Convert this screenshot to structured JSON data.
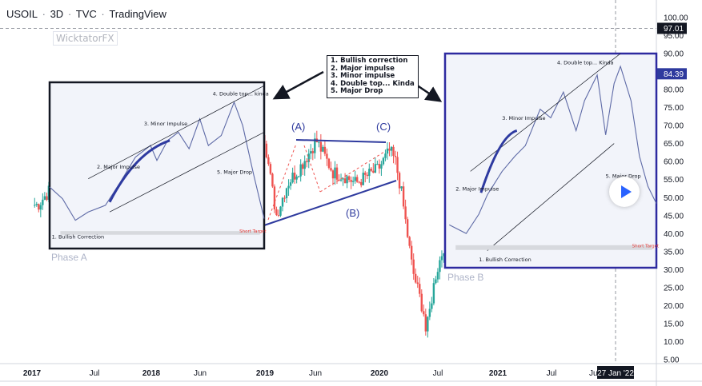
{
  "header": {
    "symbol": "USOIL",
    "timeframe": "3D",
    "exchange": "TVC",
    "brand": "TradingView"
  },
  "watermark": "WicktatorFX",
  "legend": {
    "items": [
      "1. Bullish correction",
      "2. Major impulse",
      "3. Minor impulse",
      "4. Double top... Kinda",
      "5. Major Drop"
    ]
  },
  "labels": {
    "phase_a": "Phase A",
    "phase_b": "Phase B",
    "wave_a": "(A)",
    "wave_b": "(B)",
    "wave_c": "(C)"
  },
  "inset_a": {
    "labels": [
      "1. Bullish Correction",
      "2. Major Impulse",
      "3. Minor Impulse",
      "4. Double top... kinda",
      "5. Major Drop"
    ],
    "target": "Short Target"
  },
  "inset_b": {
    "labels": [
      "1. Bullish Correction",
      "2. Major Impulse",
      "3. Minor Impulse",
      "4. Double top... Kinda",
      "5. Major Drop"
    ],
    "target": "Short Target"
  },
  "colors": {
    "up": "#26a69a",
    "down": "#ef5350",
    "up_inset": "#1c2d5c",
    "down_inset": "#ef9bb5",
    "accent": "#2e3a9e",
    "last_price": "#2e3a9e"
  },
  "chart_data": {
    "type": "candlestick",
    "title": "USOIL · 3D · TVC",
    "y_axis": {
      "min": 5,
      "max": 100,
      "ticks": [
        100,
        95,
        90,
        85,
        80,
        75,
        70,
        65,
        60,
        55,
        50,
        45,
        40,
        35,
        30,
        25,
        20,
        15,
        10,
        5
      ]
    },
    "x_axis": {
      "ticks": [
        "2017",
        "Jul",
        "2018",
        "Jun",
        "2019",
        "Jun",
        "2020",
        "Jul",
        "2021",
        "Jul",
        "Jun"
      ]
    },
    "price_labels": [
      97.01,
      84.39
    ],
    "crosshair_date": "27 Jan '22",
    "series": [
      {
        "points": [
          [
            2016.9,
            48
          ],
          [
            2017.0,
            52
          ],
          [
            2017.1,
            53
          ],
          [
            2017.2,
            51
          ],
          [
            2017.3,
            49
          ],
          [
            2017.4,
            47
          ],
          [
            2017.5,
            45
          ],
          [
            2017.6,
            47
          ],
          [
            2017.7,
            50
          ],
          [
            2017.8,
            55
          ],
          [
            2017.9,
            58
          ],
          [
            2018.0,
            62
          ],
          [
            2018.1,
            62
          ],
          [
            2018.2,
            64
          ],
          [
            2018.3,
            67
          ],
          [
            2018.4,
            70
          ],
          [
            2018.5,
            70
          ],
          [
            2018.6,
            72
          ],
          [
            2018.7,
            70
          ],
          [
            2018.8,
            74
          ],
          [
            2018.83,
            76
          ],
          [
            2018.9,
            66
          ],
          [
            2018.95,
            55
          ],
          [
            2019.0,
            45
          ],
          [
            2019.1,
            54
          ],
          [
            2019.2,
            58
          ],
          [
            2019.3,
            63
          ],
          [
            2019.35,
            66
          ],
          [
            2019.45,
            60
          ],
          [
            2019.5,
            57
          ],
          [
            2019.6,
            56
          ],
          [
            2019.7,
            54
          ],
          [
            2019.8,
            56
          ],
          [
            2019.9,
            58
          ],
          [
            2020.0,
            63
          ],
          [
            2020.05,
            60
          ],
          [
            2020.1,
            52
          ],
          [
            2020.2,
            30
          ],
          [
            2020.3,
            18
          ],
          [
            2020.32,
            12
          ],
          [
            2020.4,
            28
          ],
          [
            2020.5,
            39
          ],
          [
            2020.6,
            42
          ],
          [
            2020.7,
            41
          ],
          [
            2020.8,
            39
          ],
          [
            2020.9,
            45
          ],
          [
            2021.0,
            51
          ],
          [
            2021.1,
            60
          ],
          [
            2021.2,
            63
          ],
          [
            2021.3,
            61
          ],
          [
            2021.4,
            66
          ],
          [
            2021.5,
            73
          ],
          [
            2021.6,
            68
          ],
          [
            2021.7,
            70
          ],
          [
            2021.8,
            79
          ],
          [
            2021.9,
            70
          ],
          [
            2022.0,
            85
          ],
          [
            2022.05,
            88
          ],
          [
            2022.1,
            84
          ]
        ]
      }
    ],
    "annotations": [
      "(A)",
      "(B)",
      "(C)",
      "Phase A",
      "Phase B"
    ]
  }
}
